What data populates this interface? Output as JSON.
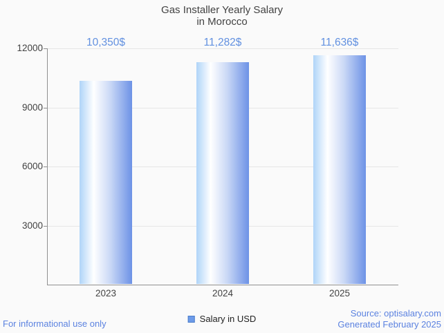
{
  "title": {
    "line1": "Gas Installer Yearly Salary",
    "line2": "in Morocco"
  },
  "chart_data": {
    "type": "bar",
    "title": "Gas Installer Yearly Salary in Morocco",
    "categories": [
      "2023",
      "2024",
      "2025"
    ],
    "values": [
      10350,
      11282,
      11636
    ],
    "value_labels": [
      "10,350$",
      "11,282$",
      "11,636$"
    ],
    "series": [
      {
        "name": "Salary in USD",
        "values": [
          10350,
          11282,
          11636
        ]
      }
    ],
    "xlabel": "",
    "ylabel": "",
    "ylim": [
      0,
      12000
    ],
    "yticks": [
      3000,
      6000,
      9000,
      12000
    ],
    "ytick_labels": [
      "3000",
      "6000",
      "9000",
      "12000"
    ],
    "grid": true,
    "legend_position": "bottom",
    "bar_gradient": [
      "#AFD4F8",
      "#FFFFFF",
      "#6D92E6"
    ]
  },
  "legend": {
    "label": "Salary in USD",
    "swatch_color": "#6D9BE9"
  },
  "footer": {
    "left": "For informational use only",
    "source": "Source: optisalary.com",
    "generated": "Generated February 2025"
  },
  "colors": {
    "background": "#FAFAFA",
    "gridline": "#E6E6E6",
    "axis": "#8F8F8F",
    "text_dark": "#424242",
    "accent_blue": "#5B82E0",
    "value_label_blue": "#6190E0"
  }
}
